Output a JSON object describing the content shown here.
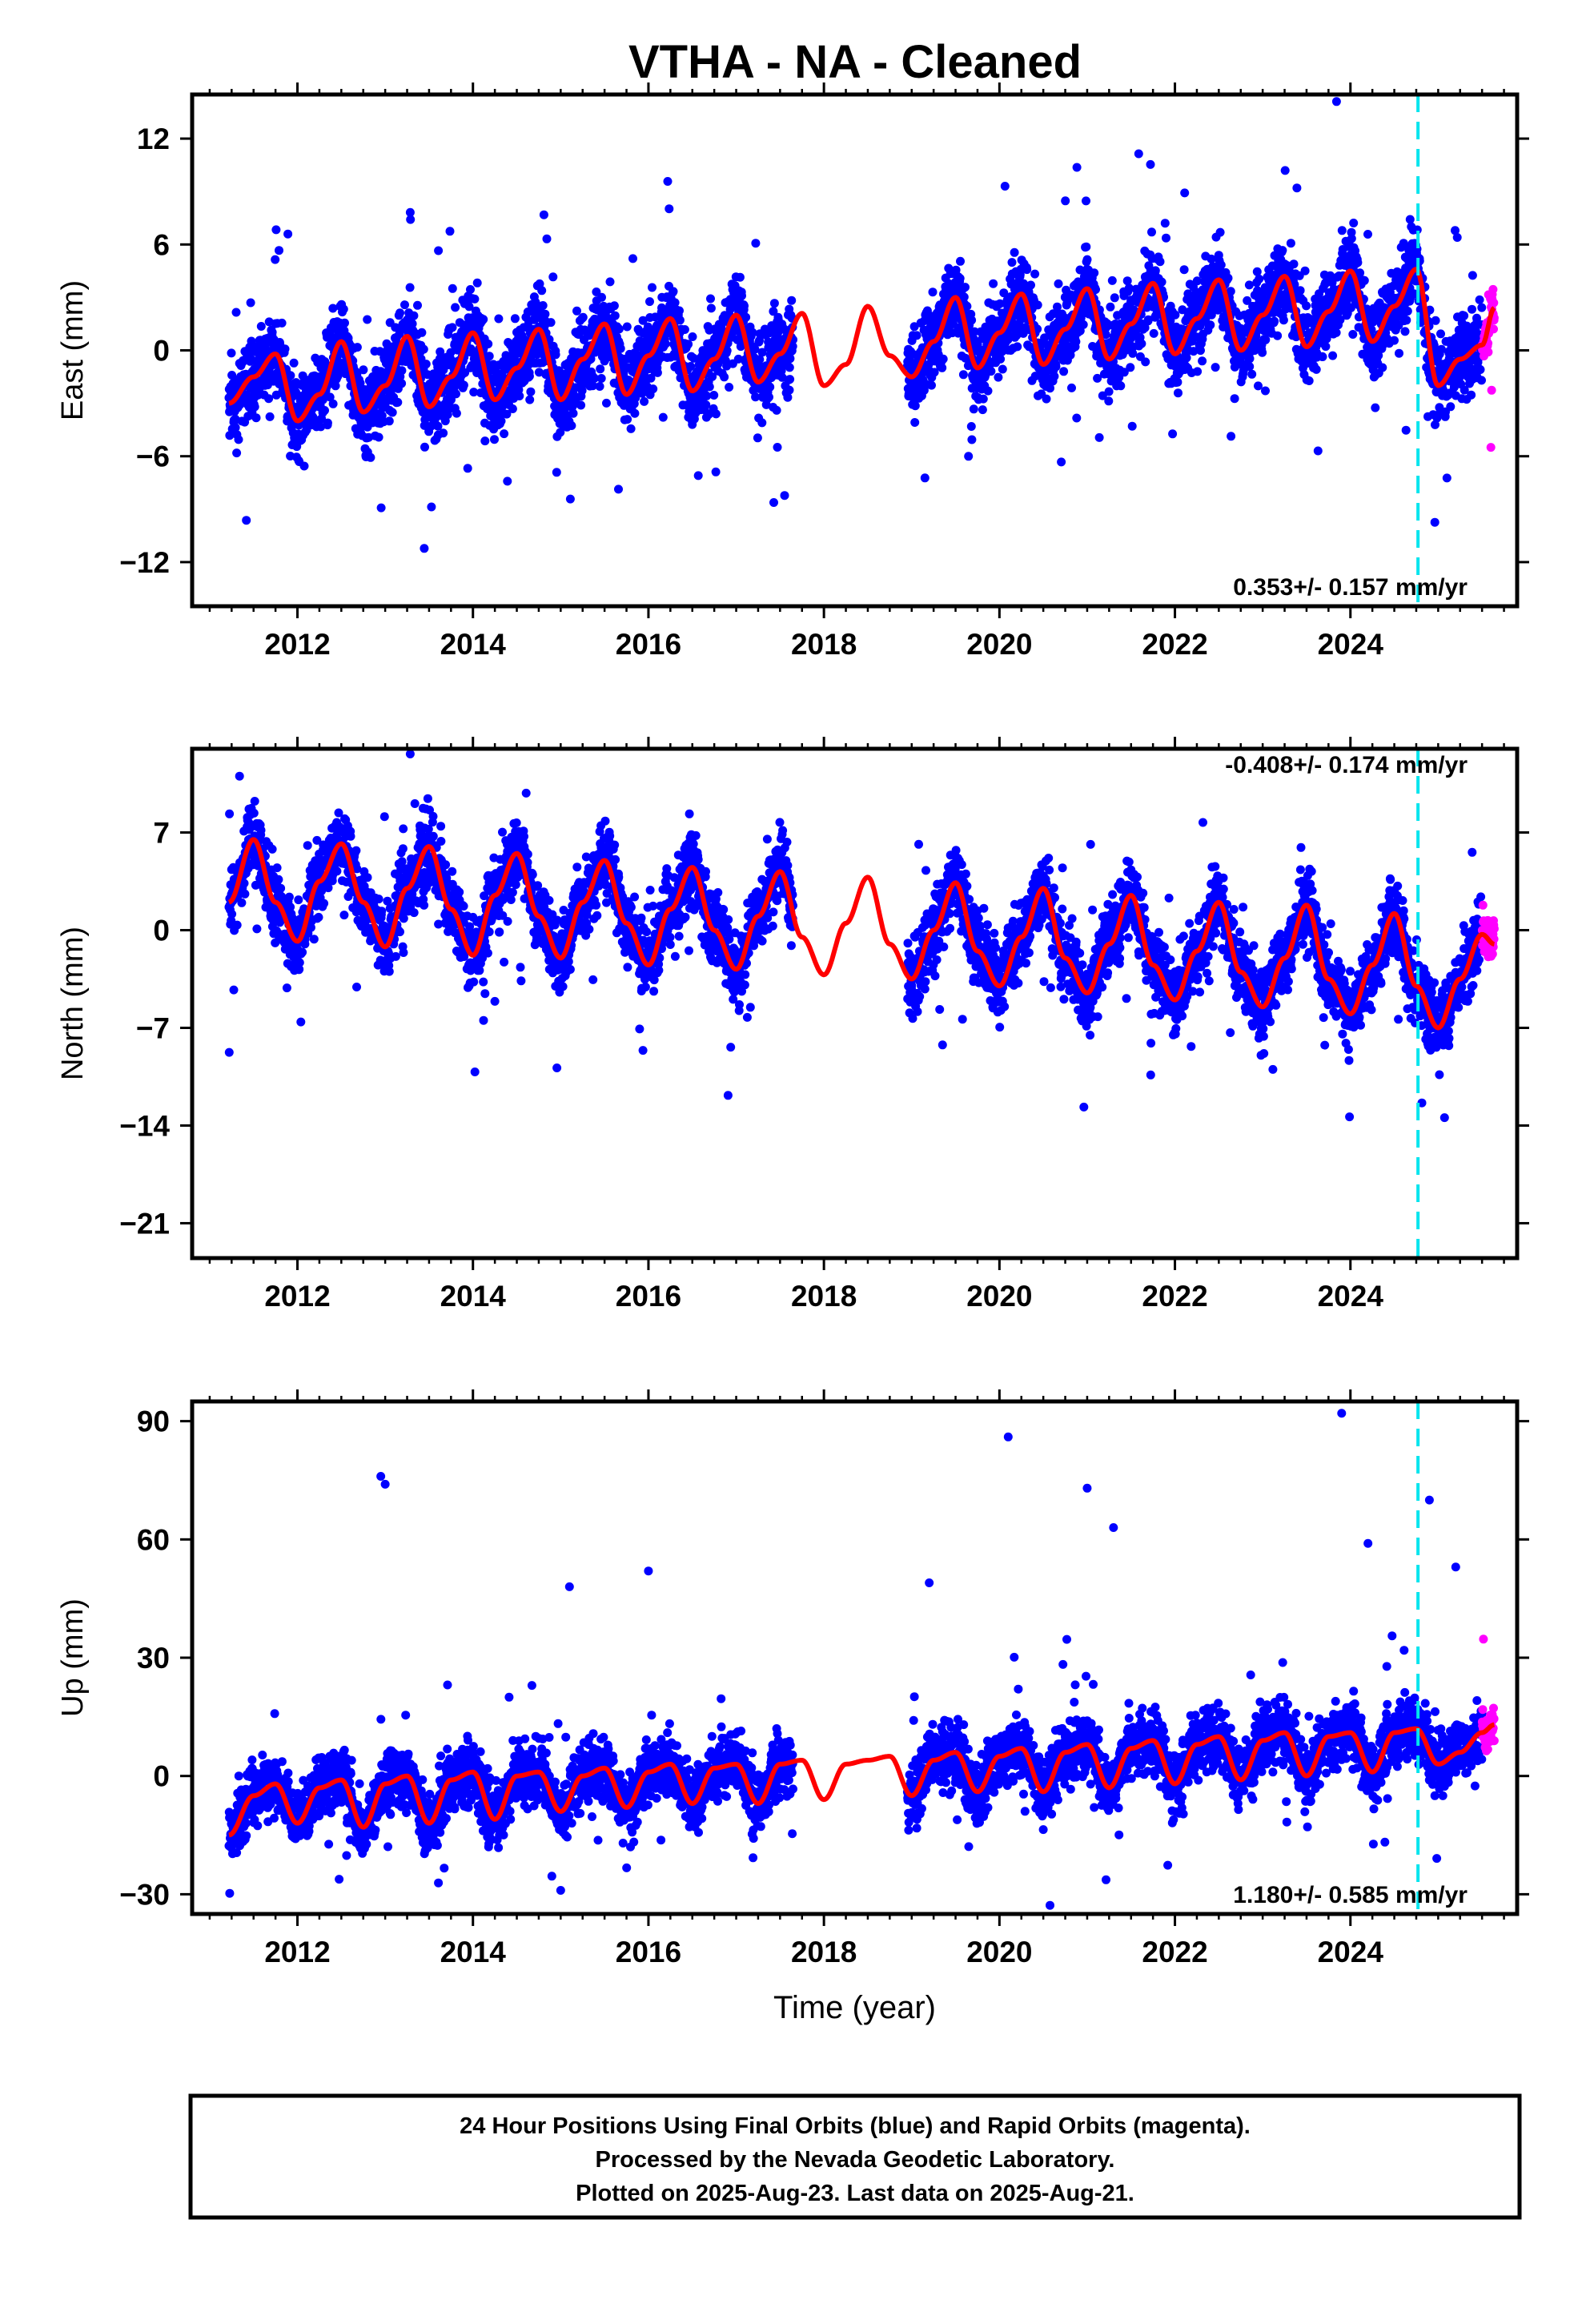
{
  "title": "VTHA  - NA - Cleaned",
  "colors": {
    "final_points": "#0000ff",
    "rapid_points": "#ff00ff",
    "model_line": "#ff0000",
    "equipment_change": "#00e5ee"
  },
  "footer": {
    "line1": "24 Hour Positions Using Final Orbits (blue) and Rapid Orbits (magenta).",
    "line2": "Processed by the Nevada Geodetic Laboratory.",
    "line3": "Plotted on 2025-Aug-23. Last data on 2025-Aug-21."
  },
  "chart_data": [
    {
      "type": "scatter",
      "panel": "east",
      "ylabel": "East (mm)",
      "xlabel": "",
      "xlim": [
        2010.8,
        2025.9
      ],
      "ylim": [
        -14.5,
        14.5
      ],
      "xticks": [
        2012,
        2014,
        2016,
        2018,
        2020,
        2022,
        2024
      ],
      "xtick_labels": [
        "2012",
        "2014",
        "2016",
        "2018",
        "2020",
        "2022",
        "2024"
      ],
      "yticks": [
        -12,
        -6,
        0,
        6,
        12
      ],
      "ytick_labels": [
        "−12",
        "−6",
        "0",
        "6",
        "12"
      ],
      "rate_label": "0.353+/- 0.157 mm/yr",
      "rate_position": "bottom-right",
      "equipment_change_year": 2024.77,
      "data_span": [
        2011.22,
        2025.64
      ],
      "gap": [
        2017.65,
        2018.95
      ],
      "rapid_span": [
        2025.5,
        2025.64
      ],
      "series": [
        {
          "name": "model",
          "x": [
            2011.22,
            2011.5,
            2011.75,
            2012.0,
            2012.25,
            2012.5,
            2012.75,
            2013.0,
            2013.25,
            2013.5,
            2013.75,
            2014.0,
            2014.25,
            2014.5,
            2014.75,
            2015.0,
            2015.25,
            2015.5,
            2015.75,
            2016.0,
            2016.25,
            2016.5,
            2016.75,
            2017.0,
            2017.25,
            2017.5,
            2017.75,
            2018.0,
            2018.25,
            2018.5,
            2018.75,
            2019.0,
            2019.25,
            2019.5,
            2019.75,
            2020.0,
            2020.25,
            2020.5,
            2020.75,
            2021.0,
            2021.25,
            2021.5,
            2021.75,
            2022.0,
            2022.25,
            2022.5,
            2022.75,
            2023.0,
            2023.25,
            2023.5,
            2023.75,
            2024.0,
            2024.25,
            2024.5,
            2024.75,
            2025.0,
            2025.25,
            2025.5,
            2025.64
          ],
          "y": [
            -3.0,
            -1.5,
            -0.2,
            -4.0,
            -2.5,
            0.5,
            -3.5,
            -2.0,
            0.8,
            -3.2,
            -1.5,
            1.0,
            -2.8,
            -1.0,
            1.2,
            -2.8,
            -0.5,
            1.5,
            -2.5,
            -0.3,
            1.8,
            -2.3,
            -0.5,
            2.0,
            -1.8,
            -0.2,
            2.1,
            -2.0,
            -0.8,
            2.5,
            -0.3,
            -1.5,
            0.5,
            3.0,
            -1.0,
            1.0,
            3.2,
            -0.8,
            1.2,
            3.5,
            -0.5,
            1.5,
            3.8,
            -0.2,
            1.8,
            4.0,
            0.0,
            2.0,
            4.2,
            0.2,
            2.2,
            4.5,
            0.5,
            2.5,
            4.6,
            -2.0,
            -0.5,
            0.3,
            2.4
          ]
        }
      ]
    },
    {
      "type": "scatter",
      "panel": "north",
      "ylabel": "North (mm)",
      "xlabel": "",
      "xlim": [
        2010.8,
        2025.9
      ],
      "ylim": [
        -23.5,
        13
      ],
      "xticks": [
        2012,
        2014,
        2016,
        2018,
        2020,
        2022,
        2024
      ],
      "xtick_labels": [
        "2012",
        "2014",
        "2016",
        "2018",
        "2020",
        "2022",
        "2024"
      ],
      "yticks": [
        -21,
        -14,
        -7,
        0,
        7
      ],
      "ytick_labels": [
        "−21",
        "−14",
        "−7",
        "0",
        "7"
      ],
      "rate_label": "-0.408+/- 0.174 mm/yr",
      "rate_position": "top-right",
      "equipment_change_year": 2024.77,
      "data_span": [
        2011.22,
        2025.64
      ],
      "gap": [
        2017.65,
        2018.95
      ],
      "rapid_span": [
        2025.5,
        2025.64
      ],
      "series": [
        {
          "name": "model",
          "x": [
            2011.22,
            2011.5,
            2011.75,
            2012.0,
            2012.25,
            2012.5,
            2012.75,
            2013.0,
            2013.25,
            2013.5,
            2013.75,
            2014.0,
            2014.25,
            2014.5,
            2014.75,
            2015.0,
            2015.25,
            2015.5,
            2015.75,
            2016.0,
            2016.25,
            2016.5,
            2016.75,
            2017.0,
            2017.25,
            2017.5,
            2017.75,
            2018.0,
            2018.25,
            2018.5,
            2018.75,
            2019.0,
            2019.25,
            2019.5,
            2019.75,
            2020.0,
            2020.25,
            2020.5,
            2020.75,
            2021.0,
            2021.25,
            2021.5,
            2021.75,
            2022.0,
            2022.25,
            2022.5,
            2022.75,
            2023.0,
            2023.25,
            2023.5,
            2023.75,
            2024.0,
            2024.25,
            2024.5,
            2024.75,
            2025.0,
            2025.25,
            2025.5,
            2025.64
          ],
          "y": [
            2.0,
            6.5,
            2.0,
            -0.8,
            3.5,
            6.2,
            2.0,
            -1.2,
            3.0,
            6.0,
            1.5,
            -1.8,
            2.5,
            5.5,
            1.0,
            -2.0,
            2.0,
            5.0,
            0.5,
            -2.5,
            1.5,
            4.5,
            0.0,
            -2.8,
            1.0,
            4.2,
            -0.5,
            -3.2,
            0.5,
            3.8,
            -1.0,
            -3.5,
            0.0,
            3.4,
            -1.5,
            -4.0,
            -0.5,
            3.0,
            -2.0,
            -4.5,
            -1.0,
            2.5,
            -2.5,
            -5.0,
            -1.5,
            2.0,
            -3.0,
            -5.5,
            -2.0,
            1.8,
            -3.5,
            -6.0,
            -2.5,
            1.2,
            -4.0,
            -7.0,
            -3.5,
            -0.3,
            -1.0
          ]
        }
      ]
    },
    {
      "type": "scatter",
      "panel": "up",
      "ylabel": "Up (mm)",
      "xlabel": "Time (year)",
      "xlim": [
        2010.8,
        2025.9
      ],
      "ylim": [
        -35,
        95
      ],
      "xticks": [
        2012,
        2014,
        2016,
        2018,
        2020,
        2022,
        2024
      ],
      "xtick_labels": [
        "2012",
        "2014",
        "2016",
        "2018",
        "2020",
        "2022",
        "2024"
      ],
      "yticks": [
        -30,
        0,
        30,
        60,
        90
      ],
      "ytick_labels": [
        "−30",
        "0",
        "30",
        "60",
        "90"
      ],
      "rate_label": "1.180+/- 0.585 mm/yr",
      "rate_position": "bottom-right",
      "equipment_change_year": 2024.77,
      "data_span": [
        2011.22,
        2025.64
      ],
      "gap": [
        2017.65,
        2018.95
      ],
      "rapid_span": [
        2025.5,
        2025.64
      ],
      "series": [
        {
          "name": "model",
          "x": [
            2011.22,
            2011.5,
            2011.75,
            2012.0,
            2012.25,
            2012.5,
            2012.75,
            2013.0,
            2013.25,
            2013.5,
            2013.75,
            2014.0,
            2014.25,
            2014.5,
            2014.75,
            2015.0,
            2015.25,
            2015.5,
            2015.75,
            2016.0,
            2016.25,
            2016.5,
            2016.75,
            2017.0,
            2017.25,
            2017.5,
            2017.75,
            2018.0,
            2018.25,
            2018.5,
            2018.75,
            2019.0,
            2019.25,
            2019.5,
            2019.75,
            2020.0,
            2020.25,
            2020.5,
            2020.75,
            2021.0,
            2021.25,
            2021.5,
            2021.75,
            2022.0,
            2022.25,
            2022.5,
            2022.75,
            2023.0,
            2023.25,
            2023.5,
            2023.75,
            2024.0,
            2024.25,
            2024.5,
            2024.75,
            2025.0,
            2025.25,
            2025.5,
            2025.64
          ],
          "y": [
            -15,
            -5,
            -2,
            -12,
            -3,
            -1,
            -13,
            -2,
            0,
            -12,
            -1,
            1,
            -11,
            0,
            1,
            -9,
            0,
            2,
            -8,
            1,
            3,
            -7,
            2,
            3,
            -7,
            3,
            4,
            -6,
            3,
            4,
            5,
            -5,
            4,
            6,
            -4,
            5,
            7,
            -4,
            6,
            8,
            -3,
            7,
            9,
            -2,
            8,
            10,
            -1,
            9,
            11,
            0,
            10,
            11,
            1,
            11,
            12,
            3,
            6,
            11,
            13
          ]
        },
        {
          "name": "outliers",
          "x": [
            2012.95,
            2013.0,
            2015.0,
            2015.1,
            2016.0,
            2019.2,
            2020.1,
            2021.0,
            2021.3,
            2023.9,
            2024.2,
            2024.9,
            2025.2
          ],
          "y": [
            76,
            74,
            -29,
            48,
            52,
            49,
            86,
            73,
            63,
            92,
            59,
            70,
            53
          ]
        }
      ]
    }
  ]
}
